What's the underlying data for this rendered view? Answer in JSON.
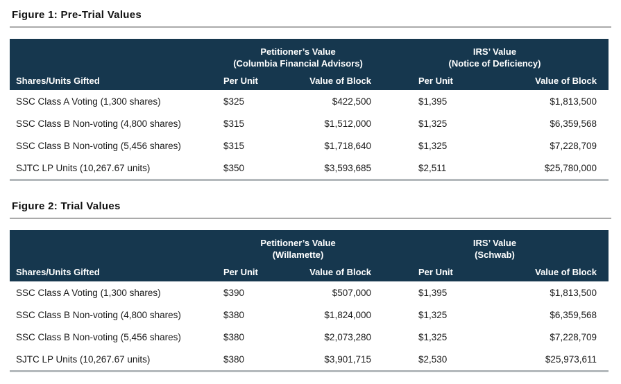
{
  "colors": {
    "header_bg": "#16374e",
    "header_text": "#ffffff",
    "rule_gray": "#aaaaaa",
    "table_bottom_rule": "#b4b9bc",
    "body_text": "#1a1a1a"
  },
  "figures": [
    {
      "title": "Figure 1: Pre-Trial Values",
      "group1_title": "Petitioner’s Value",
      "group1_subtitle": "(Columbia Financial Advisors)",
      "group2_title": "IRS’ Value",
      "group2_subtitle": "(Notice of Deficiency)",
      "col_label": "Shares/Units Gifted",
      "col_per_unit_1": "Per Unit",
      "col_value_of_block_1": "Value of Block",
      "col_per_unit_2": "Per Unit",
      "col_value_of_block_2": "Value of Block",
      "rows": [
        {
          "label": "SSC Class A Voting (1,300 shares)",
          "p_per_unit": "$325",
          "p_block": "$422,500",
          "i_per_unit": "$1,395",
          "i_block": "$1,813,500"
        },
        {
          "label": "SSC Class B Non-voting (4,800 shares)",
          "p_per_unit": "$315",
          "p_block": "$1,512,000",
          "i_per_unit": "$1,325",
          "i_block": "$6,359,568"
        },
        {
          "label": "SSC Class B Non-voting (5,456 shares)",
          "p_per_unit": "$315",
          "p_block": "$1,718,640",
          "i_per_unit": "$1,325",
          "i_block": "$7,228,709"
        },
        {
          "label": "SJTC LP Units (10,267.67 units)",
          "p_per_unit": "$350",
          "p_block": "$3,593,685",
          "i_per_unit": "$2,511",
          "i_block": "$25,780,000"
        }
      ]
    },
    {
      "title": "Figure 2: Trial Values",
      "group1_title": "Petitioner’s Value",
      "group1_subtitle": "(Willamette)",
      "group2_title": "IRS’ Value",
      "group2_subtitle": "(Schwab)",
      "col_label": "Shares/Units Gifted",
      "col_per_unit_1": "Per Unit",
      "col_value_of_block_1": "Value of Block",
      "col_per_unit_2": "Per Unit",
      "col_value_of_block_2": "Value of Block",
      "rows": [
        {
          "label": "SSC Class A Voting (1,300 shares)",
          "p_per_unit": "$390",
          "p_block": "$507,000",
          "i_per_unit": "$1,395",
          "i_block": "$1,813,500"
        },
        {
          "label": "SSC Class B Non-voting (4,800 shares)",
          "p_per_unit": "$380",
          "p_block": "$1,824,000",
          "i_per_unit": "$1,325",
          "i_block": "$6,359,568"
        },
        {
          "label": "SSC Class B Non-voting (5,456 shares)",
          "p_per_unit": "$380",
          "p_block": "$2,073,280",
          "i_per_unit": "$1,325",
          "i_block": "$7,228,709"
        },
        {
          "label": "SJTC LP Units (10,267.67 units)",
          "p_per_unit": "$380",
          "p_block": "$3,901,715",
          "i_per_unit": "$2,530",
          "i_block": "$25,973,611"
        }
      ]
    }
  ]
}
